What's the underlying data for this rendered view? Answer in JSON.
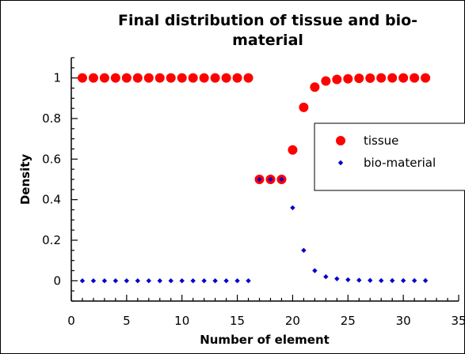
{
  "chart_data": {
    "type": "scatter",
    "title_lines": [
      "Final distribution of tissue and bio-",
      "material"
    ],
    "xlabel": "Number of element",
    "ylabel": "Density",
    "xlim": [
      0,
      35
    ],
    "ylim": [
      -0.1,
      1.1
    ],
    "xticks": [
      "0",
      "5",
      "10",
      "15",
      "20",
      "25",
      "30",
      "35"
    ],
    "yticks": [
      "0",
      "0.2",
      "0.4",
      "0.6",
      "0.8",
      "1"
    ],
    "grid": false,
    "legend_position": "right",
    "series": [
      {
        "name": "tissue",
        "color": "#ff0000",
        "marker": "circle",
        "x": [
          1,
          2,
          3,
          4,
          5,
          6,
          7,
          8,
          9,
          10,
          11,
          12,
          13,
          14,
          15,
          16,
          17,
          18,
          19,
          20,
          21,
          22,
          23,
          24,
          25,
          26,
          27,
          28,
          29,
          30,
          31,
          32
        ],
        "y": [
          1,
          1,
          1,
          1,
          1,
          1,
          1,
          1,
          1,
          1,
          1,
          1,
          1,
          1,
          1,
          1,
          0.5,
          0.5,
          0.5,
          0.645,
          0.855,
          0.955,
          0.985,
          0.993,
          0.996,
          0.998,
          0.999,
          1,
          1,
          1,
          1,
          1
        ]
      },
      {
        "name": "bio-material",
        "color": "#0000cc",
        "marker": "diamond",
        "x": [
          1,
          2,
          3,
          4,
          5,
          6,
          7,
          8,
          9,
          10,
          11,
          12,
          13,
          14,
          15,
          16,
          17,
          18,
          19,
          20,
          21,
          22,
          23,
          24,
          25,
          26,
          27,
          28,
          29,
          30,
          31,
          32
        ],
        "y": [
          0,
          0,
          0,
          0,
          0,
          0,
          0,
          0,
          0,
          0,
          0,
          0,
          0,
          0,
          0,
          0,
          0.5,
          0.5,
          0.5,
          0.36,
          0.15,
          0.05,
          0.02,
          0.01,
          0.005,
          0.003,
          0.002,
          0.001,
          0.001,
          0.001,
          0.001,
          0.001
        ]
      }
    ]
  }
}
